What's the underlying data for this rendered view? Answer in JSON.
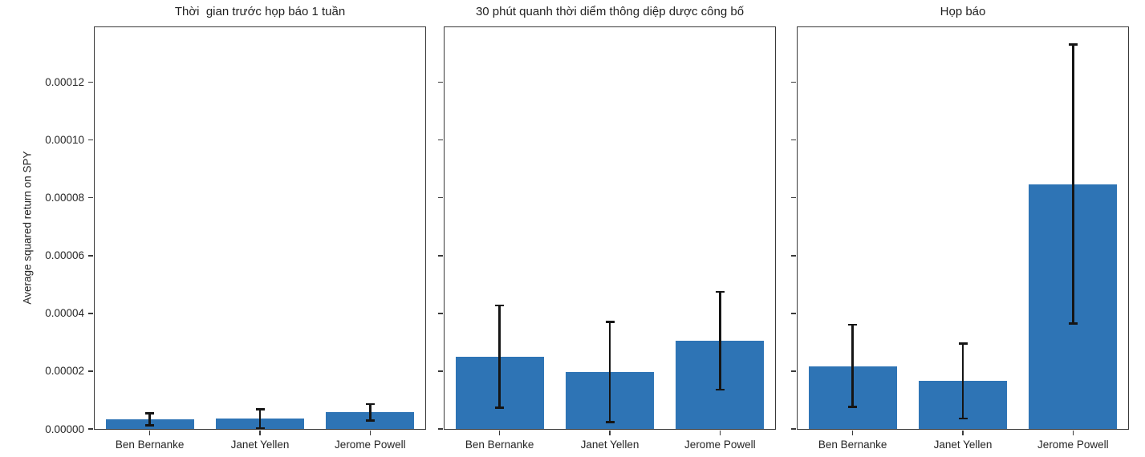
{
  "figure": {
    "ylabel": "Average squared return on SPY",
    "background": "#ffffff"
  },
  "colors": {
    "bar": "#2e74b5",
    "error_bar": "#151515",
    "axis": "#3a3a3a",
    "text": "#262626"
  },
  "yticks": {
    "labels": [
      "0.00000",
      "0.00002",
      "0.00004",
      "0.00006",
      "0.00008",
      "0.00010",
      "0.00012"
    ],
    "values": [
      0,
      2e-05,
      4e-05,
      6e-05,
      8e-05,
      0.0001,
      0.00012
    ]
  },
  "chart_data": [
    {
      "type": "bar",
      "title": "Thời  gian trước họp báo 1 tuần",
      "categories": [
        "Ben Bernanke",
        "Janet Yellen",
        "Jerome Powell"
      ],
      "values": [
        3.3e-06,
        3.5e-06,
        5.7e-06
      ],
      "error_min": [
        1.3e-06,
        2e-07,
        2.9e-06
      ],
      "error_max": [
        5.4e-06,
        6.8e-06,
        8.6e-06
      ],
      "ylabel": "Average squared return on SPY",
      "ylim": [
        0,
        0.000139
      ],
      "grid": false,
      "legend": null
    },
    {
      "type": "bar",
      "title": "30 phút quanh thời diểm thông diệp dược công bố",
      "categories": [
        "Ben Bernanke",
        "Janet Yellen",
        "Jerome Powell"
      ],
      "values": [
        2.49e-05,
        1.96e-05,
        3.05e-05
      ],
      "error_min": [
        7.4e-06,
        2.4e-06,
        1.36e-05
      ],
      "error_max": [
        4.28e-05,
        3.7e-05,
        4.75e-05
      ],
      "ylabel": "",
      "ylim": [
        0,
        0.000139
      ],
      "grid": false,
      "legend": null
    },
    {
      "type": "bar",
      "title": "Họp báo",
      "categories": [
        "Ben Bernanke",
        "Janet Yellen",
        "Jerome Powell"
      ],
      "values": [
        2.16e-05,
        1.66e-05,
        8.45e-05
      ],
      "error_min": [
        7.6e-06,
        3.6e-06,
        3.65e-05
      ],
      "error_max": [
        3.6e-05,
        2.95e-05,
        0.000133
      ],
      "ylabel": "",
      "ylim": [
        0,
        0.000139
      ],
      "grid": false,
      "legend": null
    }
  ]
}
